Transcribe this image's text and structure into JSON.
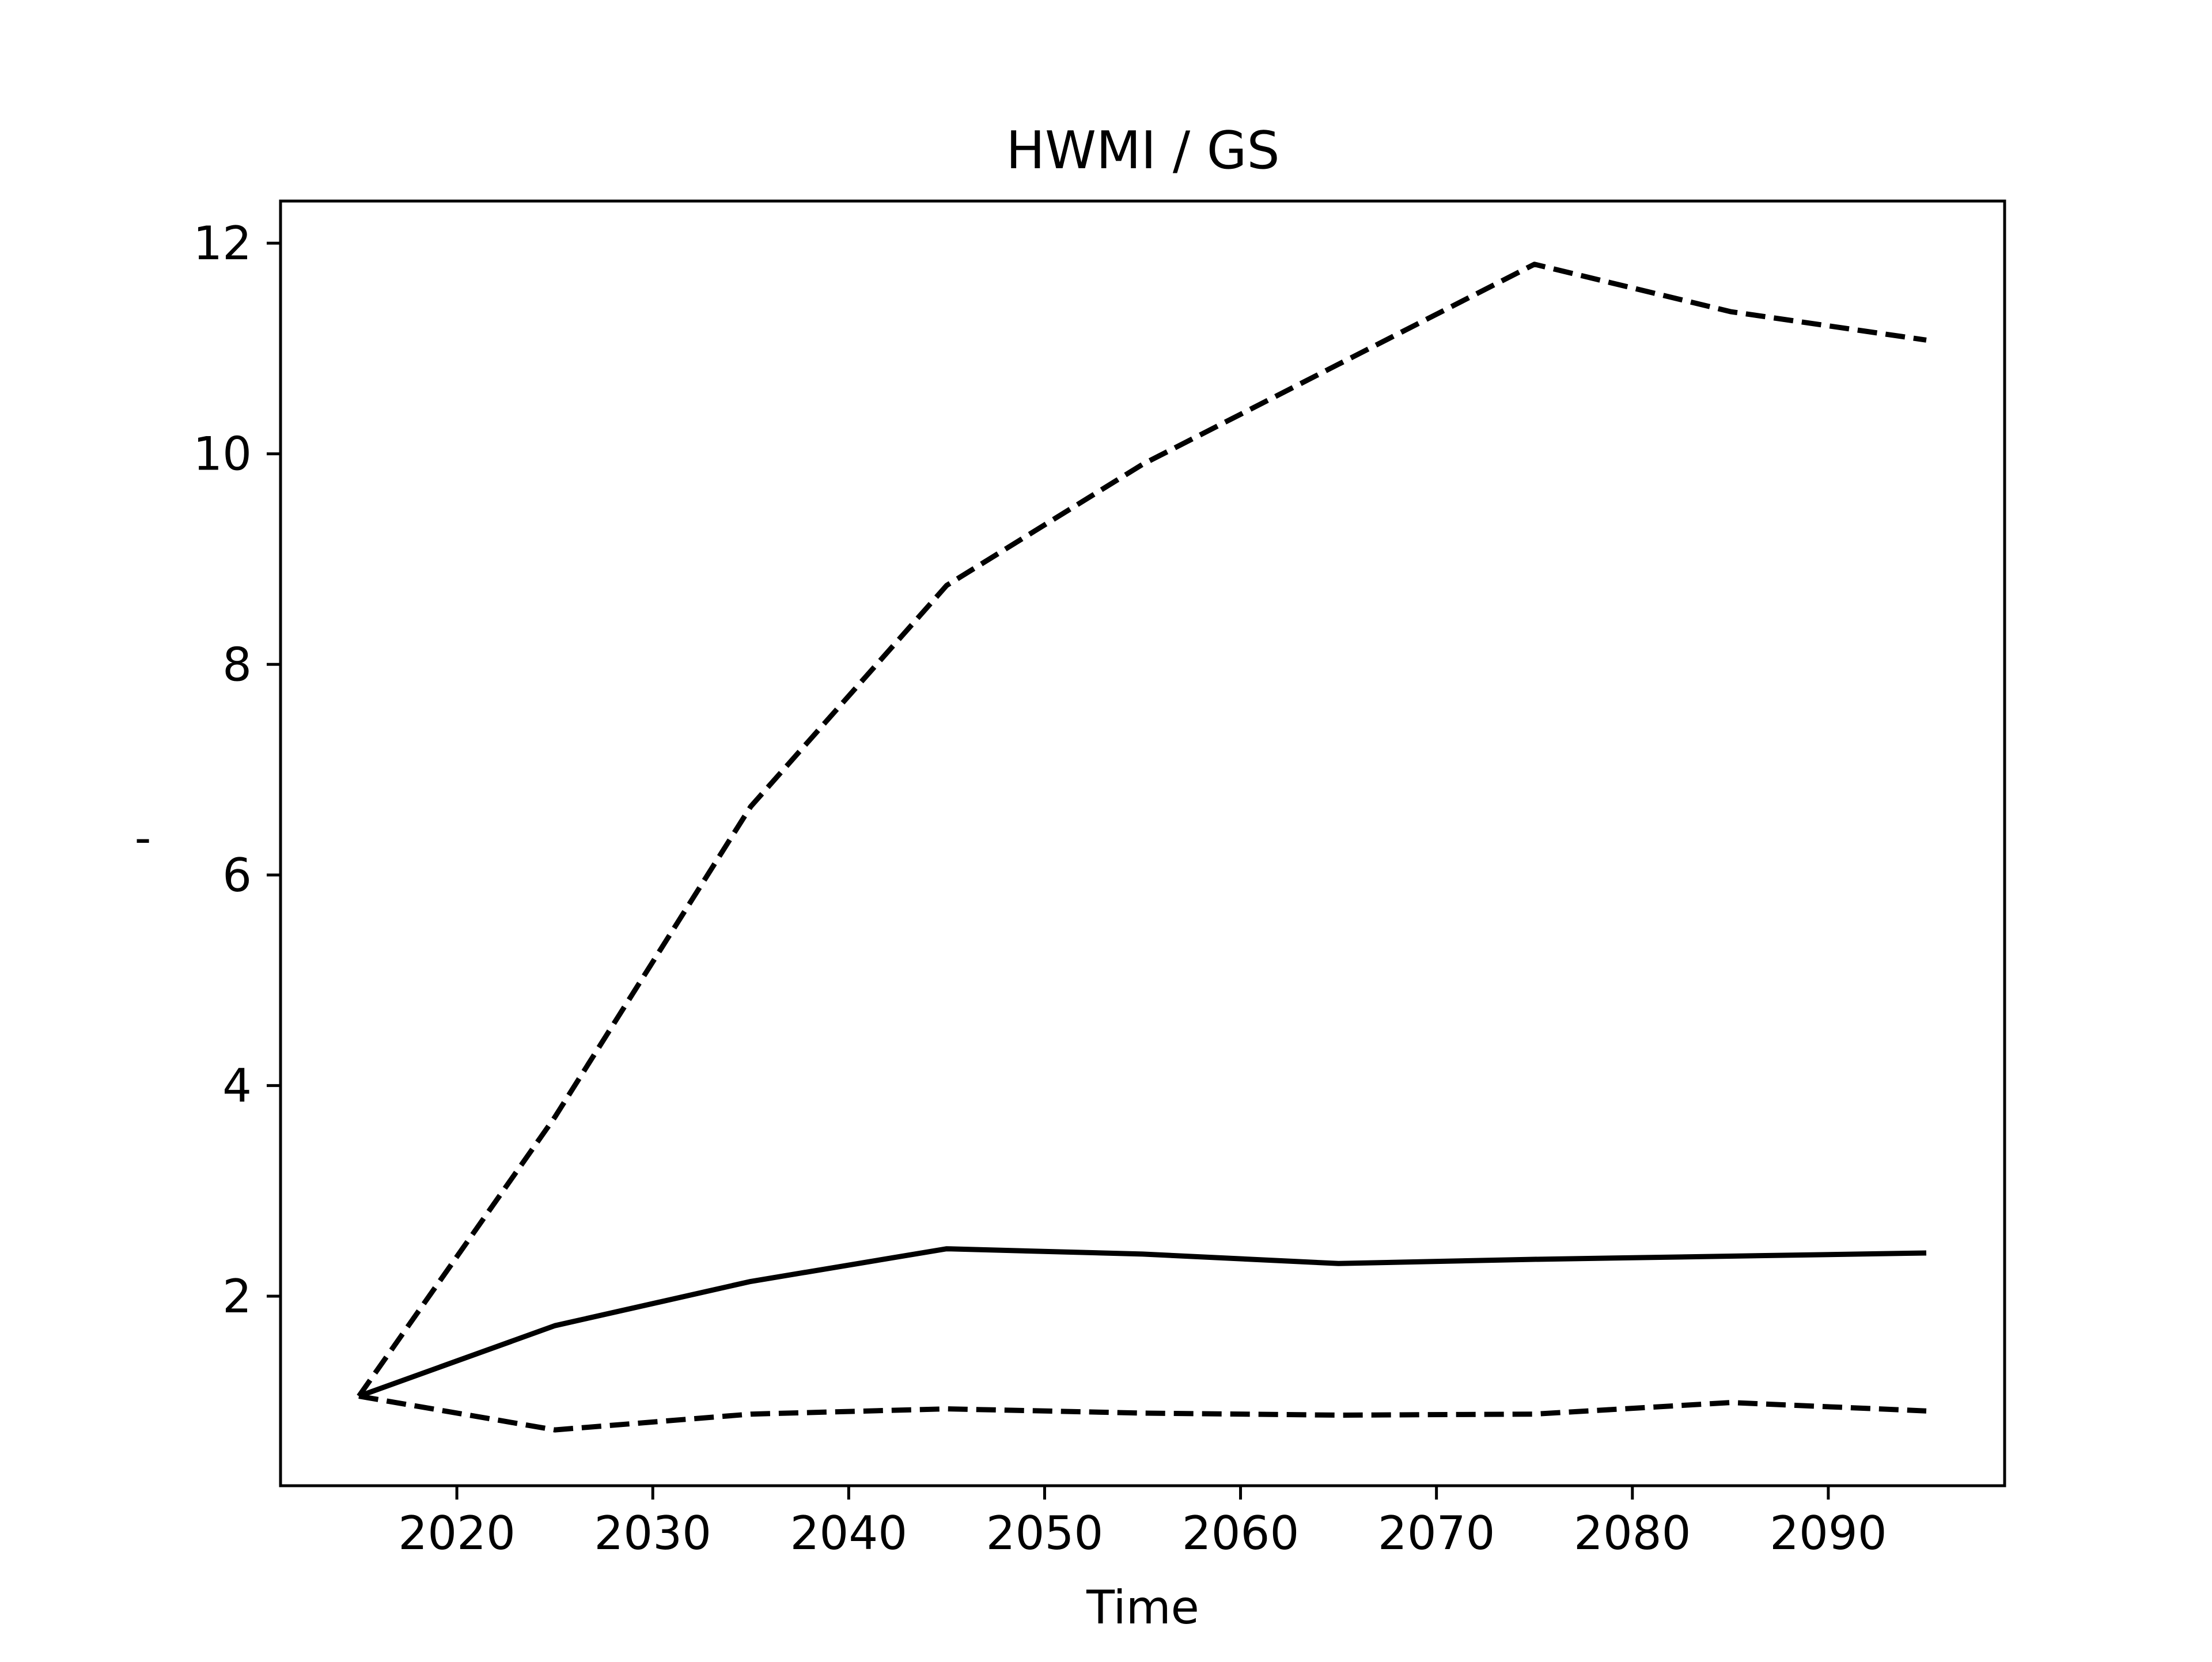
{
  "chart_data": {
    "type": "line",
    "title": "HWMI / GS",
    "xlabel": "Time",
    "ylabel": "-",
    "xlim": [
      2011,
      2099
    ],
    "ylim": [
      0.2,
      12.4
    ],
    "x_ticks": [
      2020,
      2030,
      2040,
      2050,
      2060,
      2070,
      2080,
      2090
    ],
    "y_ticks": [
      2,
      4,
      6,
      8,
      10,
      12
    ],
    "x_tick_labels": [
      "2020",
      "2030",
      "2040",
      "2050",
      "2060",
      "2070",
      "2080",
      "2090"
    ],
    "y_tick_labels": [
      "2",
      "4",
      "6",
      "8",
      "10",
      "12"
    ],
    "grid": false,
    "x": [
      2015,
      2025,
      2035,
      2045,
      2055,
      2065,
      2075,
      2085,
      2095
    ],
    "series": [
      {
        "style": "solid",
        "color": "#000000",
        "values": [
          1.05,
          1.72,
          2.14,
          2.45,
          2.4,
          2.31,
          2.35,
          2.38,
          2.41
        ]
      },
      {
        "style": "dashed",
        "color": "#000000",
        "values": [
          1.05,
          3.7,
          6.65,
          8.75,
          9.9,
          10.85,
          11.8,
          11.35,
          11.08
        ]
      },
      {
        "style": "dashed",
        "color": "#000000",
        "values": [
          1.05,
          0.73,
          0.88,
          0.93,
          0.89,
          0.87,
          0.88,
          0.99,
          0.91
        ]
      }
    ]
  }
}
